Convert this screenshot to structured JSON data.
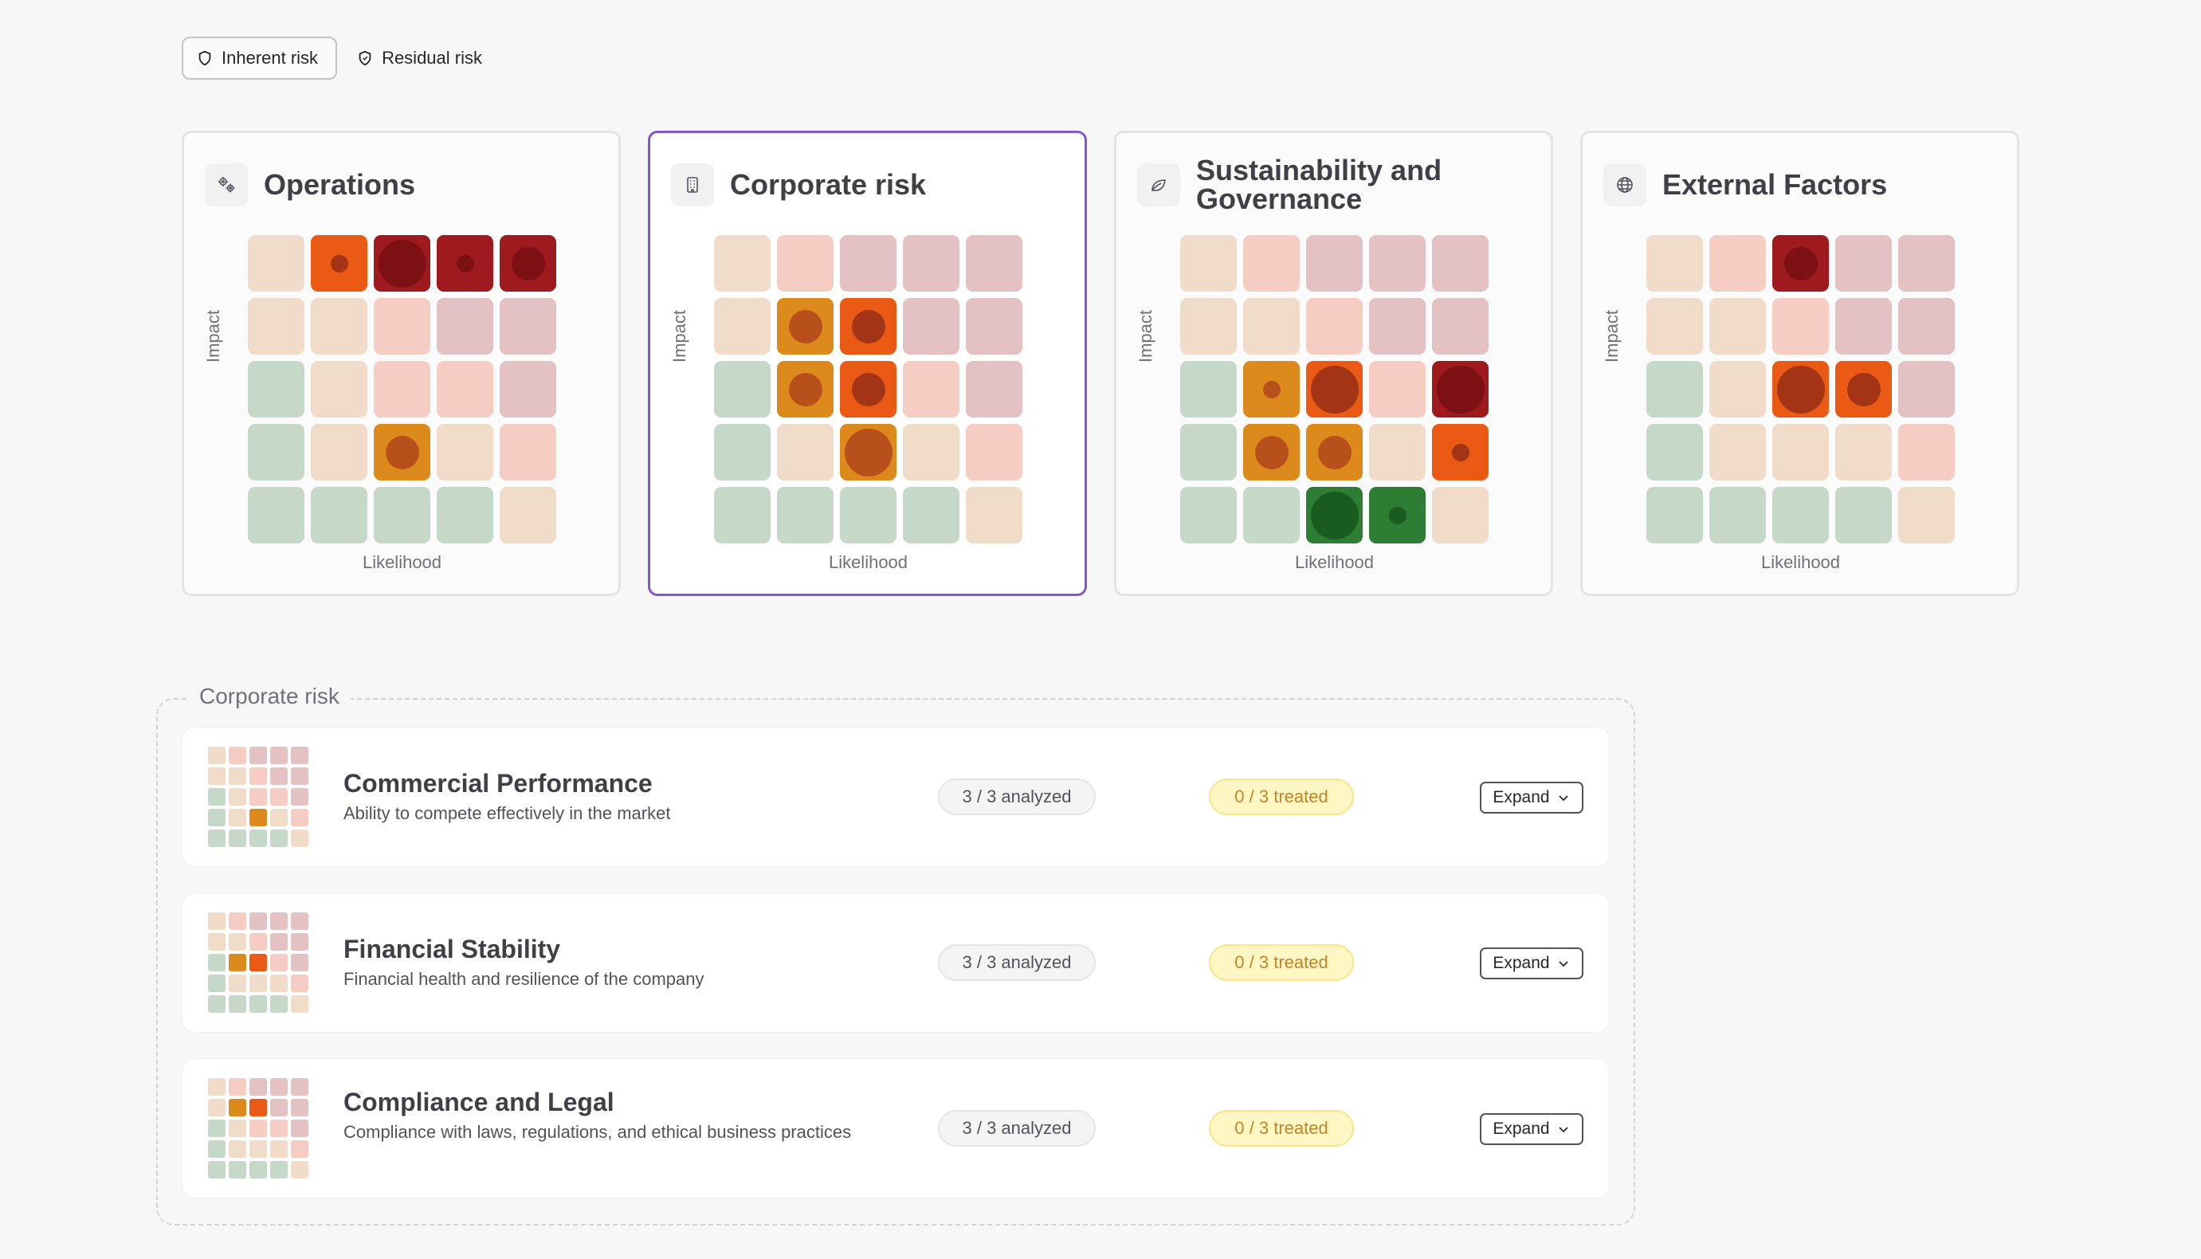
{
  "toggles": [
    {
      "label": "Inherent risk",
      "icon": "shield-icon",
      "active": true
    },
    {
      "label": "Residual risk",
      "icon": "shield-icon",
      "active": false
    }
  ],
  "axis": {
    "x_label": "Likelihood",
    "y_label": "Impact"
  },
  "palette": {
    "empty": [
      "#c6d9c8",
      "#f0dcc8",
      "#f5cdc2",
      "#e4c1c3",
      "#f5ddc6"
    ],
    "green": "#2d7d34",
    "amber": "#dc8a1c",
    "orange": "#ea5a14",
    "red": "#9f1a1f",
    "selected_border": "#8256d0"
  },
  "categories": [
    {
      "name": "Operations",
      "icon": "gears-icon",
      "selected": false,
      "matrix": [
        [
          "peach",
          "orange:s",
          "red:l",
          "red:s",
          "red:m"
        ],
        [
          "peach",
          "peach",
          "salmon",
          "rose",
          "rose"
        ],
        [
          "green",
          "peach",
          "salmon",
          "salmon",
          "rose"
        ],
        [
          "green",
          "peach",
          "amber:m",
          "peach",
          "salmon"
        ],
        [
          "green",
          "green",
          "green",
          "green",
          "peach"
        ]
      ]
    },
    {
      "name": "Corporate risk",
      "icon": "building-icon",
      "selected": true,
      "matrix": [
        [
          "peach",
          "salmon",
          "rose",
          "rose",
          "rose"
        ],
        [
          "peach",
          "amber:m",
          "orange:m",
          "rose",
          "rose"
        ],
        [
          "green",
          "amber:m",
          "orange:m",
          "salmon",
          "rose"
        ],
        [
          "green",
          "peach",
          "amber:l",
          "peach",
          "salmon"
        ],
        [
          "green",
          "green",
          "green",
          "green",
          "peach"
        ]
      ]
    },
    {
      "name": "Sustainability and Governance",
      "icon": "leaf-icon",
      "selected": false,
      "matrix": [
        [
          "peach",
          "salmon",
          "rose",
          "rose",
          "rose"
        ],
        [
          "peach",
          "peach",
          "salmon",
          "rose",
          "rose"
        ],
        [
          "green",
          "amber:s",
          "orange:l",
          "salmon",
          "red:l"
        ],
        [
          "green",
          "amber:m",
          "amber:m",
          "peach",
          "orange:s"
        ],
        [
          "green",
          "green",
          "dgreen:l",
          "dgreen:s",
          "peach"
        ]
      ]
    },
    {
      "name": "External Factors",
      "icon": "globe-icon",
      "selected": false,
      "matrix": [
        [
          "peach",
          "salmon",
          "red:m",
          "rose",
          "rose"
        ],
        [
          "peach",
          "peach",
          "salmon",
          "rose",
          "rose"
        ],
        [
          "green",
          "peach",
          "orange:l",
          "orange:m",
          "rose"
        ],
        [
          "green",
          "peach",
          "peach",
          "peach",
          "salmon"
        ],
        [
          "green",
          "green",
          "green",
          "green",
          "peach"
        ]
      ]
    }
  ],
  "section": {
    "title": "Corporate risk",
    "rows": [
      {
        "title": "Commercial Performance",
        "description": "Ability to compete effectively in the market",
        "analyzed": "3 / 3  analyzed",
        "treated": "0 / 3  treated",
        "expand_label": "Expand",
        "highlight": [
          [
            3,
            2,
            "amber"
          ]
        ]
      },
      {
        "title": "Financial Stability",
        "description": "Financial health and resilience of the company",
        "analyzed": "3 / 3  analyzed",
        "treated": "0 / 3  treated",
        "expand_label": "Expand",
        "highlight": [
          [
            2,
            1,
            "amber"
          ],
          [
            2,
            2,
            "orange"
          ]
        ]
      },
      {
        "title": "Compliance and Legal",
        "description": "Compliance with laws, regulations, and ethical business practices",
        "analyzed": "3 / 3  analyzed",
        "treated": "0 / 3  treated",
        "expand_label": "Expand",
        "highlight": [
          [
            1,
            1,
            "amber"
          ],
          [
            1,
            2,
            "orange"
          ]
        ]
      }
    ]
  }
}
